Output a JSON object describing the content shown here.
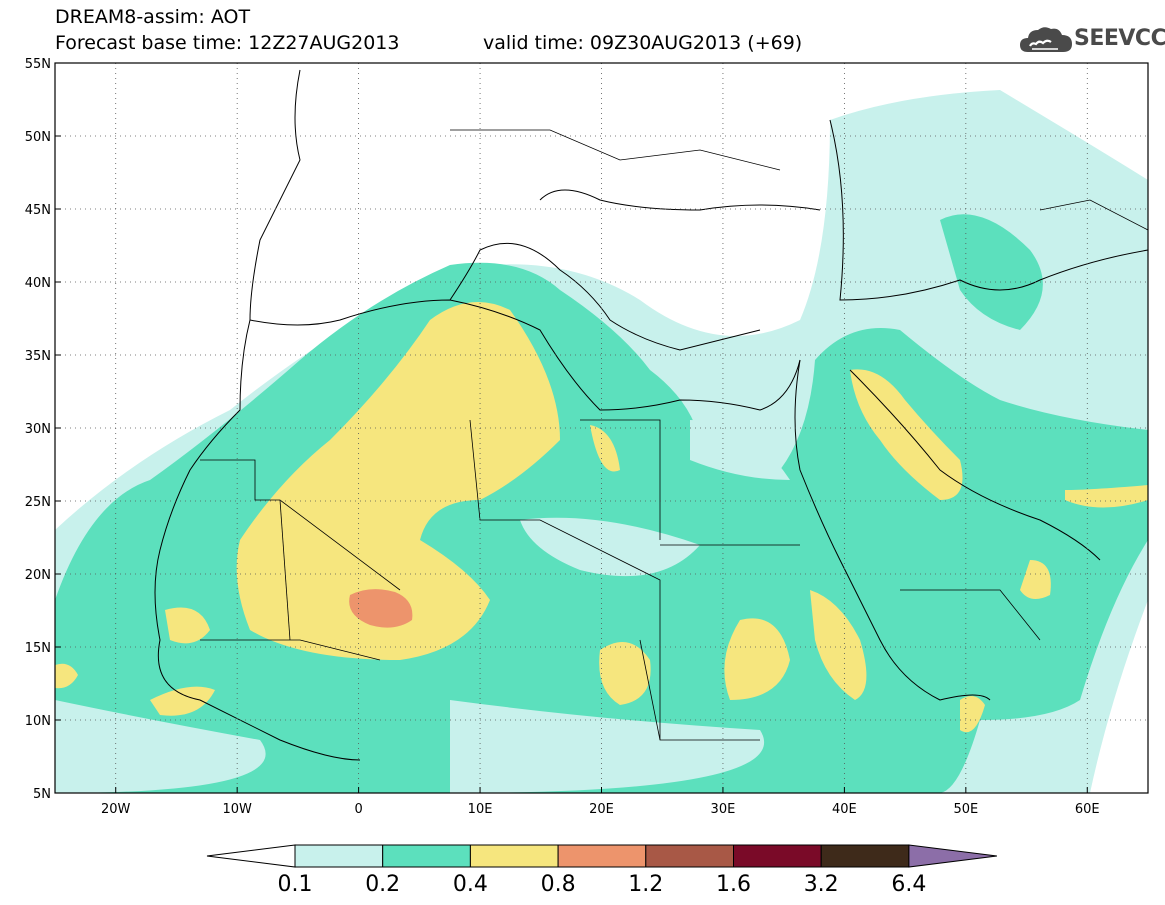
{
  "header": {
    "model_title": "DREAM8-assim: AOT",
    "base_time": "Forecast base time: 12Z27AUG2013",
    "valid_time": "valid time: 09Z30AUG2013 (+69)",
    "logo_text": "SEEVCCC",
    "logo_icon": "cloud-icon"
  },
  "map": {
    "lat_labels": [
      "55N",
      "50N",
      "45N",
      "40N",
      "35N",
      "30N",
      "25N",
      "20N",
      "15N",
      "10N",
      "5N"
    ],
    "lat_values": [
      55,
      50,
      45,
      40,
      35,
      30,
      25,
      20,
      15,
      10,
      5
    ],
    "lon_labels": [
      "20W",
      "10W",
      "0",
      "10E",
      "20E",
      "30E",
      "40E",
      "50E",
      "60E"
    ],
    "lon_values": [
      -20,
      -10,
      0,
      10,
      20,
      30,
      40,
      50,
      60
    ],
    "lon_range": [
      -25,
      65
    ],
    "lat_range": [
      5,
      55
    ],
    "grid": "dotted"
  },
  "colorbar": {
    "levels": [
      "0.1",
      "0.2",
      "0.4",
      "0.8",
      "1.2",
      "1.6",
      "3.2",
      "6.4"
    ],
    "colors": [
      "#c8f1ec",
      "#5ce0bd",
      "#f6e67e",
      "#ed946c",
      "#a85846",
      "#7a0a28",
      "#3e2a1a"
    ],
    "under_color": "#ffffff",
    "over_color": "#8c6ea8"
  }
}
